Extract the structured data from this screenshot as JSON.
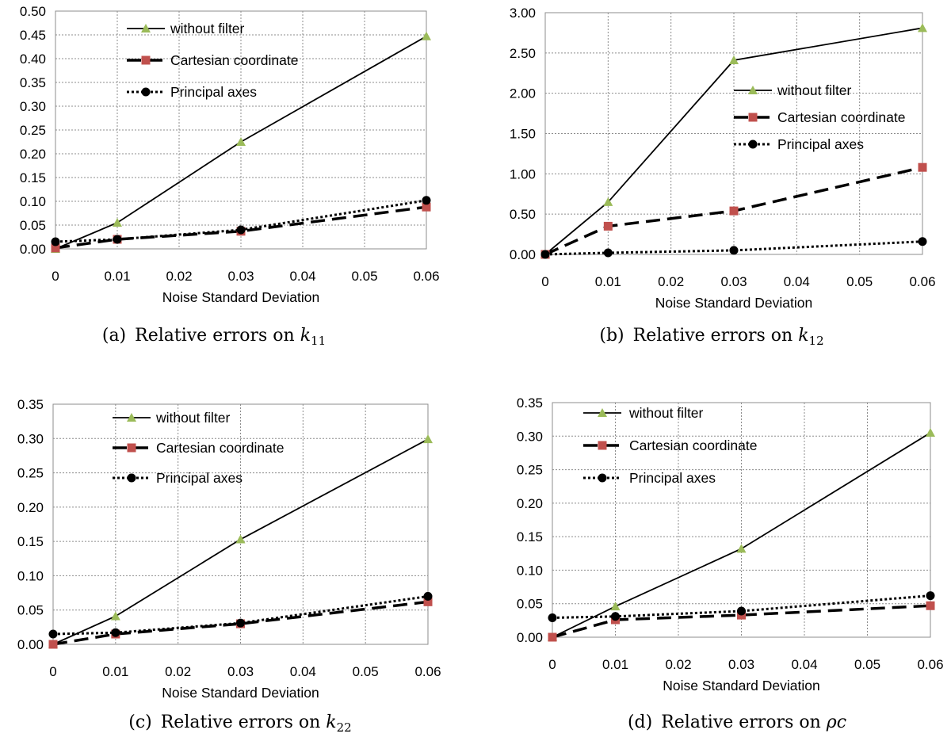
{
  "chart_data": [
    {
      "type": "line",
      "panel": "a",
      "caption": "(a) Relative errors on k11",
      "caption_parts": {
        "prefix": "(a)",
        "text": "Relative errors on",
        "symbol": "k",
        "subscript": "11"
      },
      "xlabel": "Noise Standard Deviation",
      "ylabel": "",
      "x": [
        0,
        0.01,
        0.03,
        0.06
      ],
      "xlim": [
        0,
        0.06
      ],
      "ylim": [
        0,
        0.5
      ],
      "x_ticks": [
        "0",
        "0.01",
        "0.02",
        "0.03",
        "0.04",
        "0.05",
        "0.06"
      ],
      "y_ticks": [
        "0.00",
        "0.05",
        "0.10",
        "0.15",
        "0.20",
        "0.25",
        "0.30",
        "0.35",
        "0.40",
        "0.45",
        "0.50"
      ],
      "grid": true,
      "legend_position": "top-center",
      "series": [
        {
          "name": "without filter",
          "values": [
            0.0,
            0.055,
            0.225,
            0.447
          ],
          "style": "solid",
          "marker": "triangle",
          "marker_color": "#9bbb59"
        },
        {
          "name": "Cartesian coordinate",
          "values": [
            0.002,
            0.02,
            0.037,
            0.088
          ],
          "style": "dashed",
          "marker": "square",
          "marker_color": "#c0504d"
        },
        {
          "name": "Principal axes",
          "values": [
            0.015,
            0.02,
            0.04,
            0.102
          ],
          "style": "dotted",
          "marker": "circle",
          "marker_color": "#000000"
        }
      ]
    },
    {
      "type": "line",
      "panel": "b",
      "caption": "(b) Relative errors on k12",
      "caption_parts": {
        "prefix": "(b)",
        "text": "Relative errors on",
        "symbol": "k",
        "subscript": "12"
      },
      "xlabel": "Noise Standard Deviation",
      "ylabel": "",
      "x": [
        0,
        0.01,
        0.03,
        0.06
      ],
      "xlim": [
        0,
        0.06
      ],
      "ylim": [
        0,
        3.0
      ],
      "x_ticks": [
        "0",
        "0.01",
        "0.02",
        "0.03",
        "0.04",
        "0.05",
        "0.06"
      ],
      "y_ticks": [
        "0.00",
        "0.50",
        "1.00",
        "1.50",
        "2.00",
        "2.50",
        "3.00"
      ],
      "grid": true,
      "legend_position": "center-right",
      "series": [
        {
          "name": "without filter",
          "values": [
            0.0,
            0.65,
            2.41,
            2.81
          ],
          "style": "solid",
          "marker": "triangle",
          "marker_color": "#9bbb59"
        },
        {
          "name": "Cartesian coordinate",
          "values": [
            0.0,
            0.35,
            0.54,
            1.08
          ],
          "style": "dashed",
          "marker": "square",
          "marker_color": "#c0504d"
        },
        {
          "name": "Principal axes",
          "values": [
            0.0,
            0.02,
            0.05,
            0.16
          ],
          "style": "dotted",
          "marker": "circle",
          "marker_color": "#000000"
        }
      ]
    },
    {
      "type": "line",
      "panel": "c",
      "caption": "(c) Relative errors on k22",
      "caption_parts": {
        "prefix": "(c)",
        "text": "Relative errors on",
        "symbol": "k",
        "subscript": "22"
      },
      "xlabel": "Noise Standard Deviation",
      "ylabel": "",
      "x": [
        0,
        0.01,
        0.03,
        0.06
      ],
      "xlim": [
        0,
        0.06
      ],
      "ylim": [
        0,
        0.35
      ],
      "x_ticks": [
        "0",
        "0.01",
        "0.02",
        "0.03",
        "0.04",
        "0.05",
        "0.06"
      ],
      "y_ticks": [
        "0.00",
        "0.05",
        "0.10",
        "0.15",
        "0.20",
        "0.25",
        "0.30",
        "0.35"
      ],
      "grid": true,
      "legend_position": "top-center",
      "series": [
        {
          "name": "without filter",
          "values": [
            0.0,
            0.041,
            0.153,
            0.299
          ],
          "style": "solid",
          "marker": "triangle",
          "marker_color": "#9bbb59"
        },
        {
          "name": "Cartesian coordinate",
          "values": [
            0.0,
            0.015,
            0.03,
            0.062
          ],
          "style": "dashed",
          "marker": "square",
          "marker_color": "#c0504d"
        },
        {
          "name": "Principal axes",
          "values": [
            0.015,
            0.017,
            0.031,
            0.07
          ],
          "style": "dotted",
          "marker": "circle",
          "marker_color": "#000000"
        }
      ]
    },
    {
      "type": "line",
      "panel": "d",
      "caption": "(d) Relative errors on ρc",
      "caption_parts": {
        "prefix": "(d)",
        "text": "Relative errors on",
        "symbol": "ρc",
        "subscript": ""
      },
      "xlabel": "Noise Standard Deviation",
      "ylabel": "",
      "x": [
        0,
        0.01,
        0.03,
        0.06
      ],
      "xlim": [
        0,
        0.06
      ],
      "ylim": [
        0,
        0.35
      ],
      "x_ticks": [
        "0",
        "0.01",
        "0.02",
        "0.03",
        "0.04",
        "0.05",
        "0.06"
      ],
      "y_ticks": [
        "0.00",
        "0.05",
        "0.10",
        "0.15",
        "0.20",
        "0.25",
        "0.30",
        "0.35"
      ],
      "grid": true,
      "legend_position": "top-center",
      "series": [
        {
          "name": "without filter",
          "values": [
            0.0,
            0.046,
            0.132,
            0.305
          ],
          "style": "solid",
          "marker": "triangle",
          "marker_color": "#9bbb59"
        },
        {
          "name": "Cartesian coordinate",
          "values": [
            0.0,
            0.026,
            0.033,
            0.047
          ],
          "style": "dashed",
          "marker": "square",
          "marker_color": "#c0504d"
        },
        {
          "name": "Principal axes",
          "values": [
            0.029,
            0.031,
            0.039,
            0.062
          ],
          "style": "dotted",
          "marker": "circle",
          "marker_color": "#000000"
        }
      ]
    }
  ]
}
